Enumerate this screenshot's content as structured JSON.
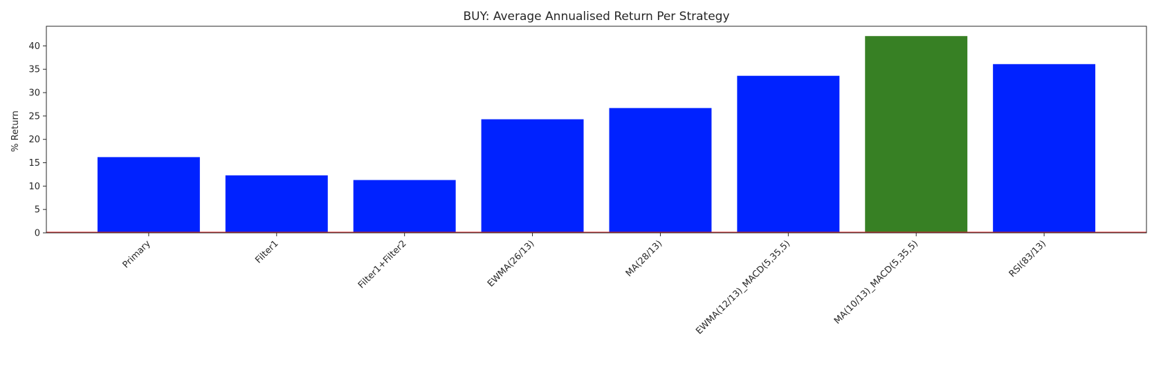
{
  "chart_data": {
    "type": "bar",
    "title": "BUY: Average Annualised Return Per Strategy",
    "xlabel": "",
    "ylabel": "% Return",
    "categories": [
      "Primary",
      "Filter1",
      "Filter1+Filter2",
      "EWMA(26/13)",
      "MA(28/13)",
      "EWMA(12/13)_MACD(5,35,5)",
      "MA(10/13)_MACD(5,35,5)",
      "RSI(83/13)"
    ],
    "values": [
      16.2,
      12.3,
      11.3,
      24.3,
      26.7,
      33.6,
      42.1,
      36.1
    ],
    "bar_colors": [
      "#0022ff",
      "#0022ff",
      "#0022ff",
      "#0022ff",
      "#0022ff",
      "#0022ff",
      "#378024",
      "#0022ff"
    ],
    "ylim": [
      0,
      44.2
    ],
    "yticks": [
      0,
      5,
      10,
      15,
      20,
      25,
      30,
      35,
      40
    ],
    "baseline": 0,
    "baseline_color": "#d62728",
    "grid": false,
    "legend": "none"
  }
}
